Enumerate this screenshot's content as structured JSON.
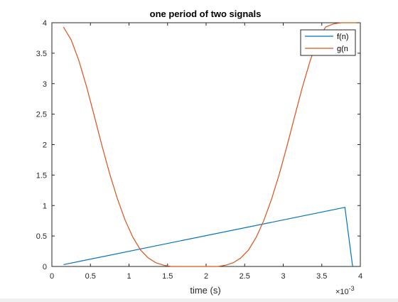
{
  "chart_data": {
    "type": "line",
    "title": "one period of two signals",
    "xlabel": "time (s)",
    "ylabel": "",
    "x_exponent_label": "×10",
    "x_exponent_power": "-3",
    "xlim": [
      0,
      4
    ],
    "ylim": [
      0,
      4
    ],
    "x_ticks": [
      0,
      0.5,
      1,
      1.5,
      2,
      2.5,
      3,
      3.5,
      4
    ],
    "x_tick_labels": [
      "0",
      "0.5",
      "1",
      "1.5",
      "2",
      "2.5",
      "3",
      "3.5",
      "4"
    ],
    "y_ticks": [
      0,
      0.5,
      1,
      1.5,
      2,
      2.5,
      3,
      3.5,
      4
    ],
    "y_tick_labels": [
      "0",
      "0.5",
      "1",
      "1.5",
      "2",
      "2.5",
      "3",
      "3.5",
      "4"
    ],
    "grid": false,
    "legend_position": "top-right",
    "series": [
      {
        "name": "f(n)",
        "color": "#0072BD",
        "x": [
          0.15,
          3.8,
          3.9
        ],
        "y": [
          0.03,
          0.97,
          0.0
        ]
      },
      {
        "name": "g(n",
        "color": "#D95319",
        "x": [
          0.15,
          0.25,
          0.35,
          0.45,
          0.55,
          0.65,
          0.75,
          0.85,
          0.95,
          1.05,
          1.15,
          1.25,
          1.35,
          1.45,
          1.55,
          1.65,
          1.75,
          1.85,
          1.95,
          2.05,
          2.15,
          2.25,
          2.35,
          2.45,
          2.55,
          2.65,
          2.75,
          2.85,
          2.95,
          3.05,
          3.15,
          3.25,
          3.35,
          3.45,
          3.55,
          3.65,
          3.75,
          3.85,
          3.95
        ],
        "y": [
          3.93,
          3.72,
          3.38,
          2.95,
          2.47,
          1.98,
          1.52,
          1.11,
          0.76,
          0.48,
          0.27,
          0.14,
          0.06,
          0.02,
          0.0,
          0.0,
          0.0,
          0.0,
          0.0,
          0.0,
          0.0,
          0.02,
          0.06,
          0.14,
          0.27,
          0.48,
          0.76,
          1.11,
          1.52,
          1.98,
          2.47,
          2.95,
          3.38,
          3.72,
          3.93,
          3.98,
          4.0,
          4.0,
          4.0
        ]
      }
    ]
  }
}
